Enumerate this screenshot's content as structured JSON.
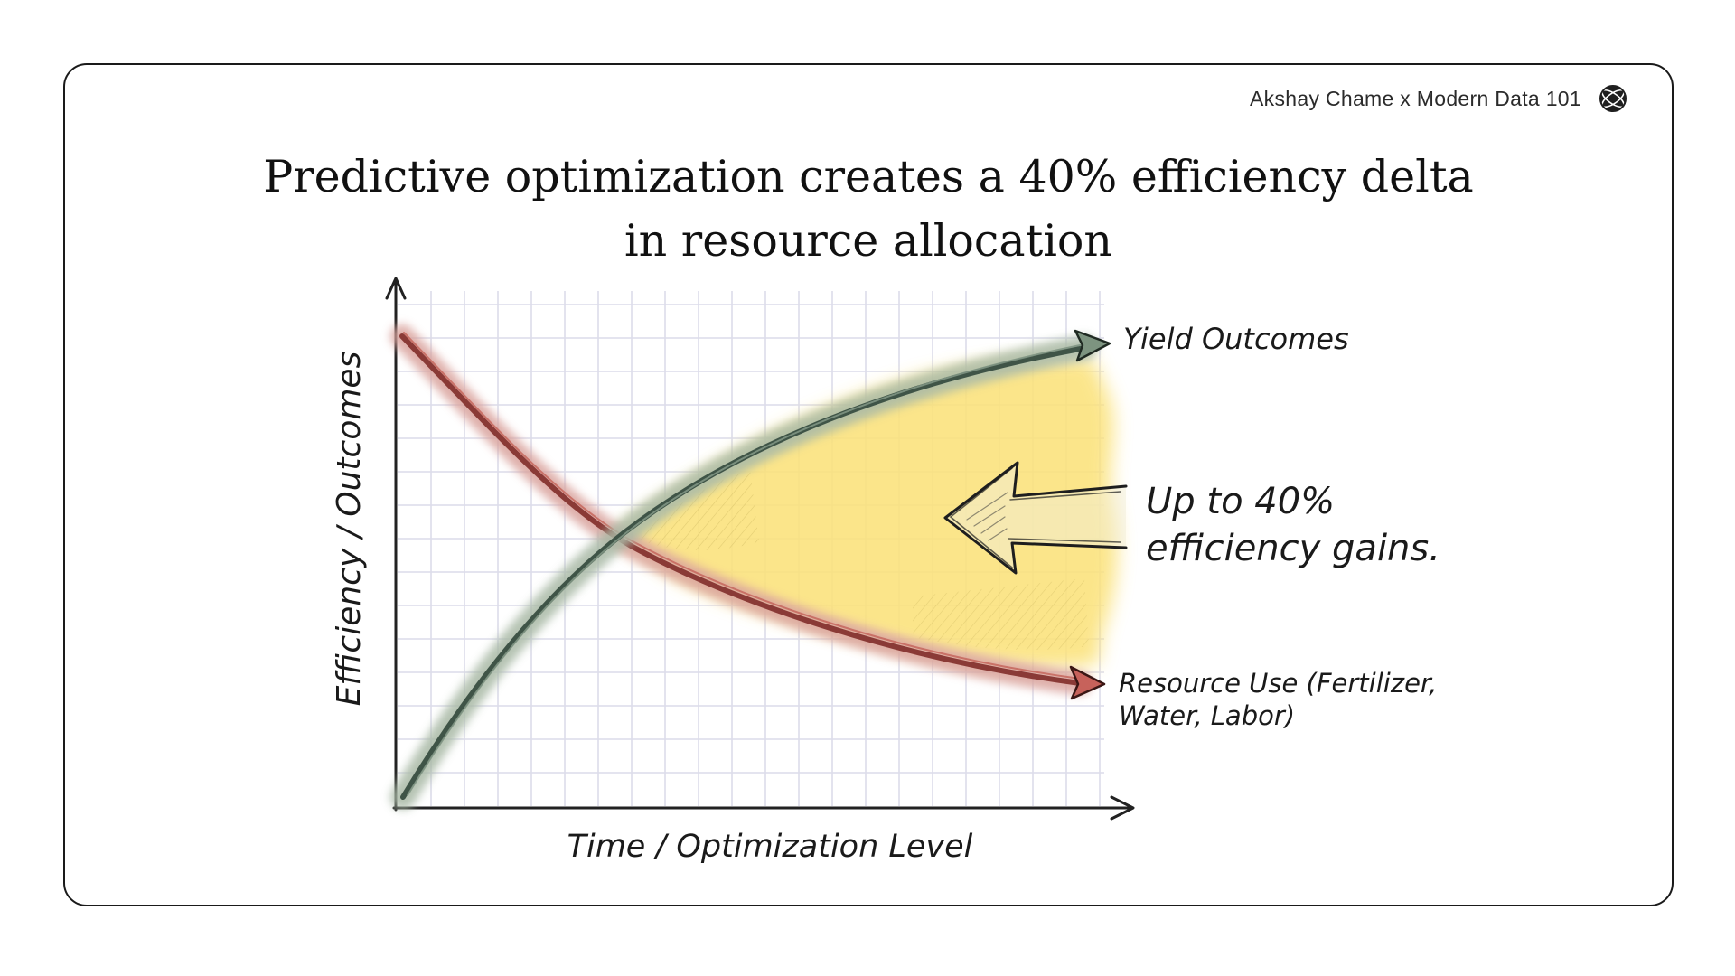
{
  "header": {
    "brand_text": "Akshay Chame x Modern Data 101",
    "brand_icon": "globe-logo-icon"
  },
  "title": {
    "line1": "Predictive optimization creates a 40% efficiency delta",
    "line2": "in resource allocation"
  },
  "diagram": {
    "y_axis_label": "Efficiency / Outcomes",
    "x_axis_label": "Time / Optimization Level",
    "yield_label": "Yield Outcomes",
    "resource_label_line1": "Resource Use (Fertilizer,",
    "resource_label_line2": "Water, Labor)",
    "gain_label_line1": "Up to 40%",
    "gain_label_line2": "efficiency gains.",
    "colors": {
      "yield_curve": "#3f5447",
      "yield_halo": "#a9b9a6",
      "resource_curve": "#8a3a36",
      "resource_halo": "#d9a29c",
      "gain_area": "#fbe27a",
      "grid": "#dcdcea"
    }
  }
}
